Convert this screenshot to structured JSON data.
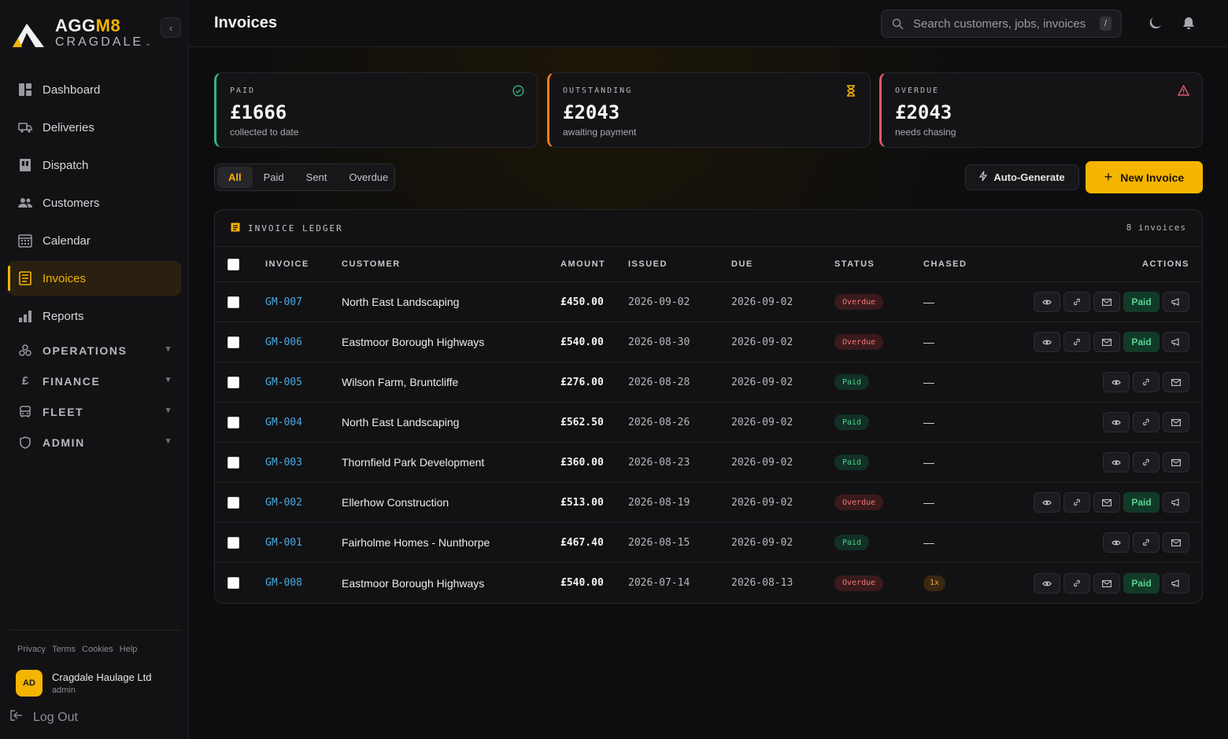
{
  "brand": {
    "name_a": "AGG",
    "name_b": "M8",
    "sub": "CRAGDALE",
    "sub_chevron": "⌄"
  },
  "sidebar": {
    "items": [
      {
        "label": "Dashboard",
        "icon": "dashboard-icon"
      },
      {
        "label": "Deliveries",
        "icon": "truck-icon"
      },
      {
        "label": "Dispatch",
        "icon": "dispatch-icon"
      },
      {
        "label": "Customers",
        "icon": "users-icon"
      },
      {
        "label": "Calendar",
        "icon": "calendar-icon"
      },
      {
        "label": "Invoices",
        "icon": "invoice-icon",
        "active": true
      },
      {
        "label": "Reports",
        "icon": "bar-chart-icon"
      }
    ],
    "groups": [
      {
        "label": "OPERATIONS",
        "icon": "operations-icon"
      },
      {
        "label": "FINANCE",
        "icon": "pound-icon"
      },
      {
        "label": "FLEET",
        "icon": "bus-icon"
      },
      {
        "label": "ADMIN",
        "icon": "shield-icon"
      }
    ],
    "footer_links": [
      "Privacy",
      "Terms",
      "Cookies",
      "Help"
    ],
    "account": {
      "initials": "AD",
      "name": "Cragdale Haulage Ltd",
      "role": "admin"
    },
    "logout_label": "Log Out"
  },
  "header": {
    "title": "Invoices",
    "search_placeholder": "Search customers, jobs, invoices",
    "search_shortcut": "/"
  },
  "stats": [
    {
      "label": "PAID",
      "value": "£1666",
      "sub": "collected to date",
      "color": "#2fb58a",
      "icon": "check-circle-icon"
    },
    {
      "label": "OUTSTANDING",
      "value": "£2043",
      "sub": "awaiting payment",
      "color": "#f07a2a",
      "icon": "hourglass-icon"
    },
    {
      "label": "OVERDUE",
      "value": "£2043",
      "sub": "needs chasing",
      "color": "#e05a6a",
      "icon": "warning-icon"
    }
  ],
  "filters": [
    "All",
    "Paid",
    "Sent",
    "Overdue"
  ],
  "buttons": {
    "auto_generate": "Auto-Generate",
    "new_invoice": "New Invoice"
  },
  "ledger": {
    "title": "INVOICE LEDGER",
    "count": "8 invoices",
    "columns": [
      "INVOICE",
      "CUSTOMER",
      "AMOUNT",
      "ISSUED",
      "DUE",
      "STATUS",
      "CHASED",
      "ACTIONS"
    ],
    "rows": [
      {
        "invoice": "GM-007",
        "customer": "North East Landscaping",
        "amount": "£450.00",
        "issued": "2026-09-02",
        "due": "2026-09-02",
        "status": "Overdue",
        "chased": "—",
        "paid_label": "Paid"
      },
      {
        "invoice": "GM-006",
        "customer": "Eastmoor Borough Highways",
        "amount": "£540.00",
        "issued": "2026-08-30",
        "due": "2026-09-02",
        "status": "Overdue",
        "chased": "—",
        "paid_label": "Paid"
      },
      {
        "invoice": "GM-005",
        "customer": "Wilson Farm, Bruntcliffe",
        "amount": "£276.00",
        "issued": "2026-08-28",
        "due": "2026-09-02",
        "status": "Paid",
        "chased": "—"
      },
      {
        "invoice": "GM-004",
        "customer": "North East Landscaping",
        "amount": "£562.50",
        "issued": "2026-08-26",
        "due": "2026-09-02",
        "status": "Paid",
        "chased": "—"
      },
      {
        "invoice": "GM-003",
        "customer": "Thornfield Park Development",
        "amount": "£360.00",
        "issued": "2026-08-23",
        "due": "2026-09-02",
        "status": "Paid",
        "chased": "—"
      },
      {
        "invoice": "GM-002",
        "customer": "Ellerhow Construction",
        "amount": "£513.00",
        "issued": "2026-08-19",
        "due": "2026-09-02",
        "status": "Overdue",
        "chased": "—",
        "paid_label": "Paid"
      },
      {
        "invoice": "GM-001",
        "customer": "Fairholme Homes - Nunthorpe",
        "amount": "£467.40",
        "issued": "2026-08-15",
        "due": "2026-09-02",
        "status": "Paid",
        "chased": "—"
      },
      {
        "invoice": "GM-008",
        "customer": "Eastmoor Borough Highways",
        "amount": "£540.00",
        "issued": "2026-07-14",
        "due": "2026-08-13",
        "status": "Overdue",
        "chased": "1x",
        "paid_label": "Paid"
      }
    ]
  },
  "colors": {
    "accent": "#f5b400",
    "link": "#4aa8e0",
    "paid": "#4fd18b",
    "overdue": "#f0787a"
  }
}
